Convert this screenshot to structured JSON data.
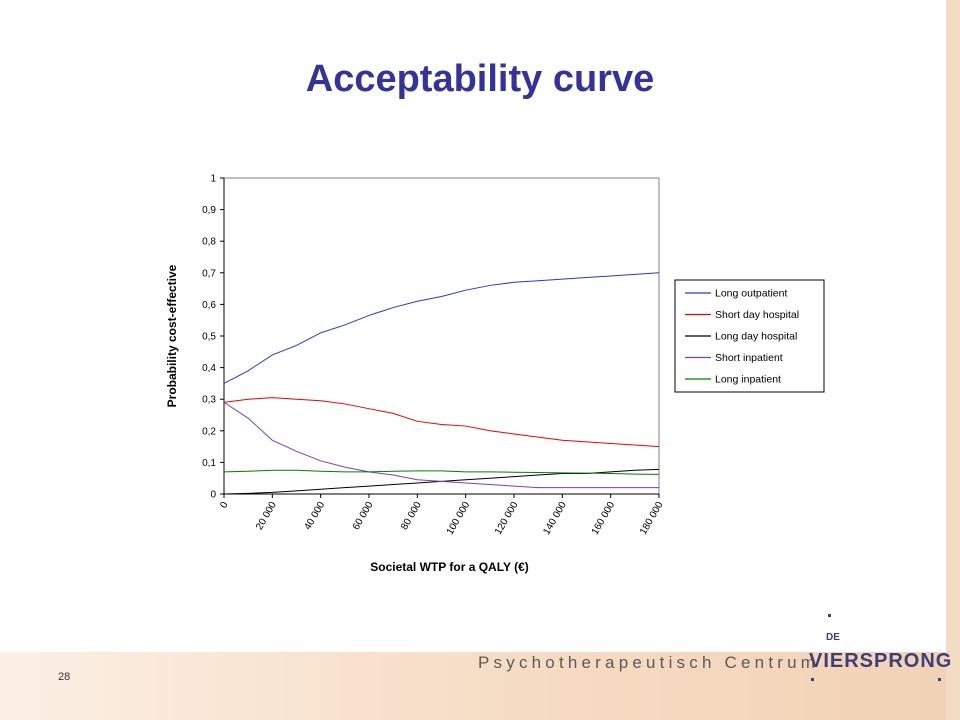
{
  "slide": {
    "title": "Acceptability curve",
    "page_number": "28",
    "footer_text": "Psychotherapeutisch Centrum",
    "logo": {
      "prefix": "DE",
      "name": "VIERSPRONG"
    },
    "colors": {
      "title": "#333399",
      "band": "#f6dcc4",
      "logo": "#3b3f7a"
    }
  },
  "chart_data": {
    "type": "line",
    "title": "",
    "xlabel": "Societal WTP for a QALY (€)",
    "ylabel": "Probability cost-effective",
    "xlim": [
      0,
      180000
    ],
    "ylim": [
      0,
      1
    ],
    "x_ticks": [
      0,
      20000,
      40000,
      60000,
      80000,
      100000,
      120000,
      140000,
      160000,
      180000
    ],
    "x_tick_labels": [
      "0",
      "20 000",
      "40 000",
      "60 000",
      "80 000",
      "100 000",
      "120 000",
      "140 000",
      "160 000",
      "180 000"
    ],
    "y_ticks": [
      0,
      0.1,
      0.2,
      0.3,
      0.4,
      0.5,
      0.6,
      0.7,
      0.8,
      0.9,
      1
    ],
    "y_tick_labels": [
      "0",
      "0,1",
      "0,2",
      "0,3",
      "0,4",
      "0,5",
      "0,6",
      "0,7",
      "0,8",
      "0,9",
      "1"
    ],
    "legend_position": "right",
    "x": [
      0,
      10000,
      20000,
      30000,
      40000,
      50000,
      60000,
      70000,
      80000,
      90000,
      100000,
      110000,
      120000,
      130000,
      140000,
      150000,
      160000,
      170000,
      180000
    ],
    "series": [
      {
        "name": "Long outpatient",
        "color": "#3333cc",
        "values": [
          0.35,
          0.39,
          0.44,
          0.47,
          0.51,
          0.535,
          0.565,
          0.59,
          0.61,
          0.625,
          0.645,
          0.66,
          0.67,
          0.675,
          0.68,
          0.685,
          0.69,
          0.695,
          0.7
        ]
      },
      {
        "name": "Short day hospital",
        "color": "#ee0000",
        "values": [
          0.29,
          0.3,
          0.305,
          0.3,
          0.295,
          0.285,
          0.27,
          0.255,
          0.23,
          0.22,
          0.215,
          0.2,
          0.19,
          0.18,
          0.17,
          0.165,
          0.16,
          0.155,
          0.15
        ]
      },
      {
        "name": "Long day hospital",
        "color": "#000000",
        "values": [
          0,
          0.002,
          0.005,
          0.01,
          0.015,
          0.02,
          0.025,
          0.03,
          0.035,
          0.04,
          0.045,
          0.05,
          0.055,
          0.06,
          0.065,
          0.065,
          0.07,
          0.075,
          0.078
        ]
      },
      {
        "name": "Short inpatient",
        "color": "#7a3fb5",
        "values": [
          0.29,
          0.24,
          0.17,
          0.135,
          0.105,
          0.085,
          0.07,
          0.06,
          0.045,
          0.04,
          0.035,
          0.03,
          0.025,
          0.02,
          0.02,
          0.02,
          0.02,
          0.02,
          0.02
        ]
      },
      {
        "name": "Long inpatient",
        "color": "#008000",
        "values": [
          0.07,
          0.072,
          0.075,
          0.075,
          0.072,
          0.07,
          0.07,
          0.072,
          0.073,
          0.073,
          0.07,
          0.07,
          0.069,
          0.068,
          0.067,
          0.066,
          0.065,
          0.063,
          0.062
        ]
      }
    ]
  }
}
